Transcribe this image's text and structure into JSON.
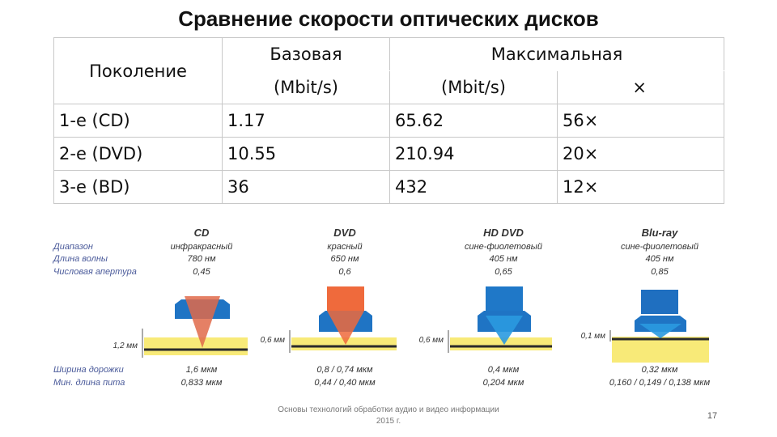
{
  "title": "Сравнение скорости оптических дисков",
  "table": {
    "header": {
      "generation": "Поколение",
      "base": "Базовая",
      "max": "Максимальная",
      "base_unit": "(Mbit/s)",
      "max_unit": "(Mbit/s)",
      "multiplier": "×"
    },
    "rows": [
      {
        "gen": "1-е (CD)",
        "base": "1.17",
        "max": "65.62",
        "mult": "56×"
      },
      {
        "gen": "2-е (DVD)",
        "base": "10.55",
        "max": "210.94",
        "mult": "20×"
      },
      {
        "gen": "3-е (BD)",
        "base": "36",
        "max": "432",
        "mult": "12×"
      }
    ]
  },
  "figure": {
    "row_labels": {
      "range": "Диапазон",
      "wavelength": "Длина волны",
      "aperture": "Числовая апертура",
      "track_width": "Ширина дорожки",
      "pit_length": "Мин. длина пита"
    },
    "discs": [
      {
        "name": "CD",
        "band": "инфракрасный",
        "wavelength": "780 нм",
        "aperture": "0,45",
        "thickness": "1,2 мм",
        "track": "1,6 мкм",
        "pit": "0,833 мкм",
        "beam_color": "#e06a4a"
      },
      {
        "name": "DVD",
        "band": "красный",
        "wavelength": "650 нм",
        "aperture": "0,6",
        "thickness": "0,6 мм",
        "track": "0,8 / 0,74 мкм",
        "pit": "0,44 / 0,40 мкм",
        "beam_color": "#ef6a3c"
      },
      {
        "name": "HD DVD",
        "band": "сине-фиолетовый",
        "wavelength": "405 нм",
        "aperture": "0,65",
        "thickness": "0,6 мм",
        "track": "0,4 мкм",
        "pit": "0,204 мкм",
        "beam_color": "#1f78c8"
      },
      {
        "name": "Blu-ray",
        "band": "сине-фиолетовый",
        "wavelength": "405 нм",
        "aperture": "0,85",
        "thickness": "0,1 мм",
        "track": "0,32 мкм",
        "pit": "0,160 / 0,149 / 0,138 мкм",
        "beam_color": "#1f6fc0"
      }
    ],
    "colors": {
      "label_text": "#4a5a9a",
      "disc_layer": "#f8ea78",
      "track_line": "#2a2a2a",
      "lens": "#1f74c4"
    }
  },
  "footer": {
    "line1": "Основы технологий обработки аудио и видео информации",
    "line2": "2015 г."
  },
  "page_number": "17"
}
